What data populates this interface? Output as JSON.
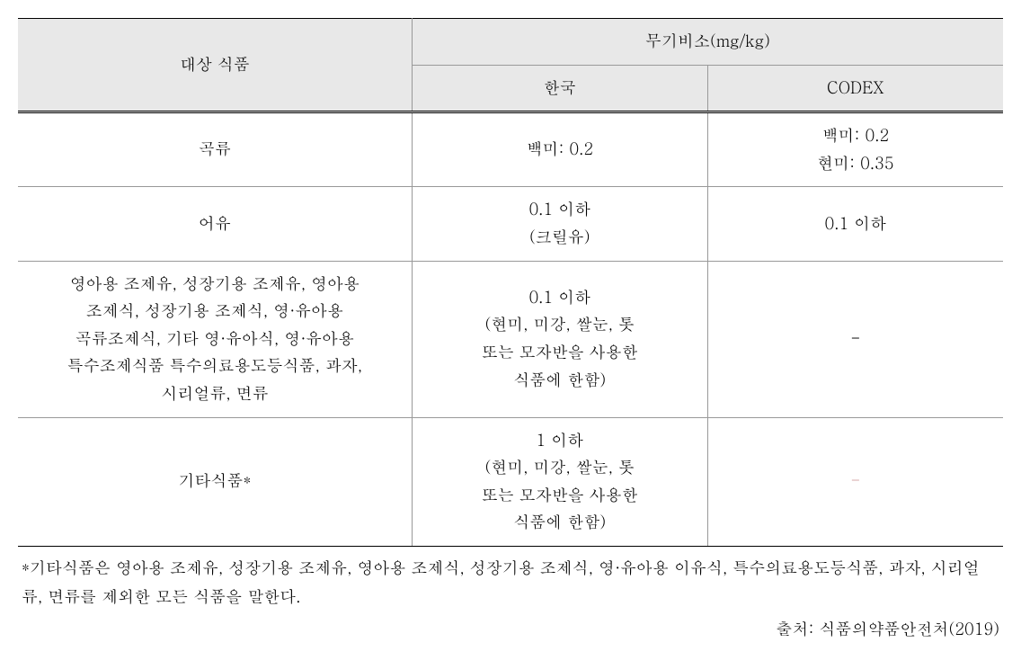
{
  "table": {
    "header": {
      "col1": "대상 식품",
      "col2_group": "무기비소(mg/kg)",
      "col2_sub1": "한국",
      "col2_sub2": "CODEX"
    },
    "rows": [
      {
        "food": "곡류",
        "korea": "백미: 0.2",
        "codex": "백미: 0.2\n현미: 0.35"
      },
      {
        "food": "어유",
        "korea": "0.1 이하\n(크릴유)",
        "codex": "0.1 이하"
      },
      {
        "food": "영아용 조제유, 성장기용 조제유, 영아용\n조제식, 성장기용 조제식, 영·유아용\n곡류조제식, 기타 영·유아식, 영·유아용\n특수조제식품 특수의료용도등식품, 과자,\n시리얼류, 면류",
        "korea": "0.1 이하\n(현미, 미강, 쌀눈, 톳\n또는 모자반을 사용한\n식품에 한함)",
        "codex": "-"
      },
      {
        "food": "기타식품*",
        "korea": "1 이하\n(현미, 미강, 쌀눈, 톳\n또는 모자반을 사용한\n식품에 한함)",
        "codex": "-"
      }
    ]
  },
  "footnote": "*기타식품은 영아용 조제유, 성장기용 조제유, 영아용 조제식, 성장기용 조제식, 영·유아용 이유식, 특수의료용도등식품, 과자, 시리얼류, 면류를 제외한 모든 식품을 말한다.",
  "source": "출처: 식품의약품안전처(2019)",
  "colors": {
    "header_bg": "#e8e8e8",
    "border": "#999999",
    "border_strong": "#000000",
    "text": "#000000",
    "pink_dash": "#d4a5a5"
  }
}
